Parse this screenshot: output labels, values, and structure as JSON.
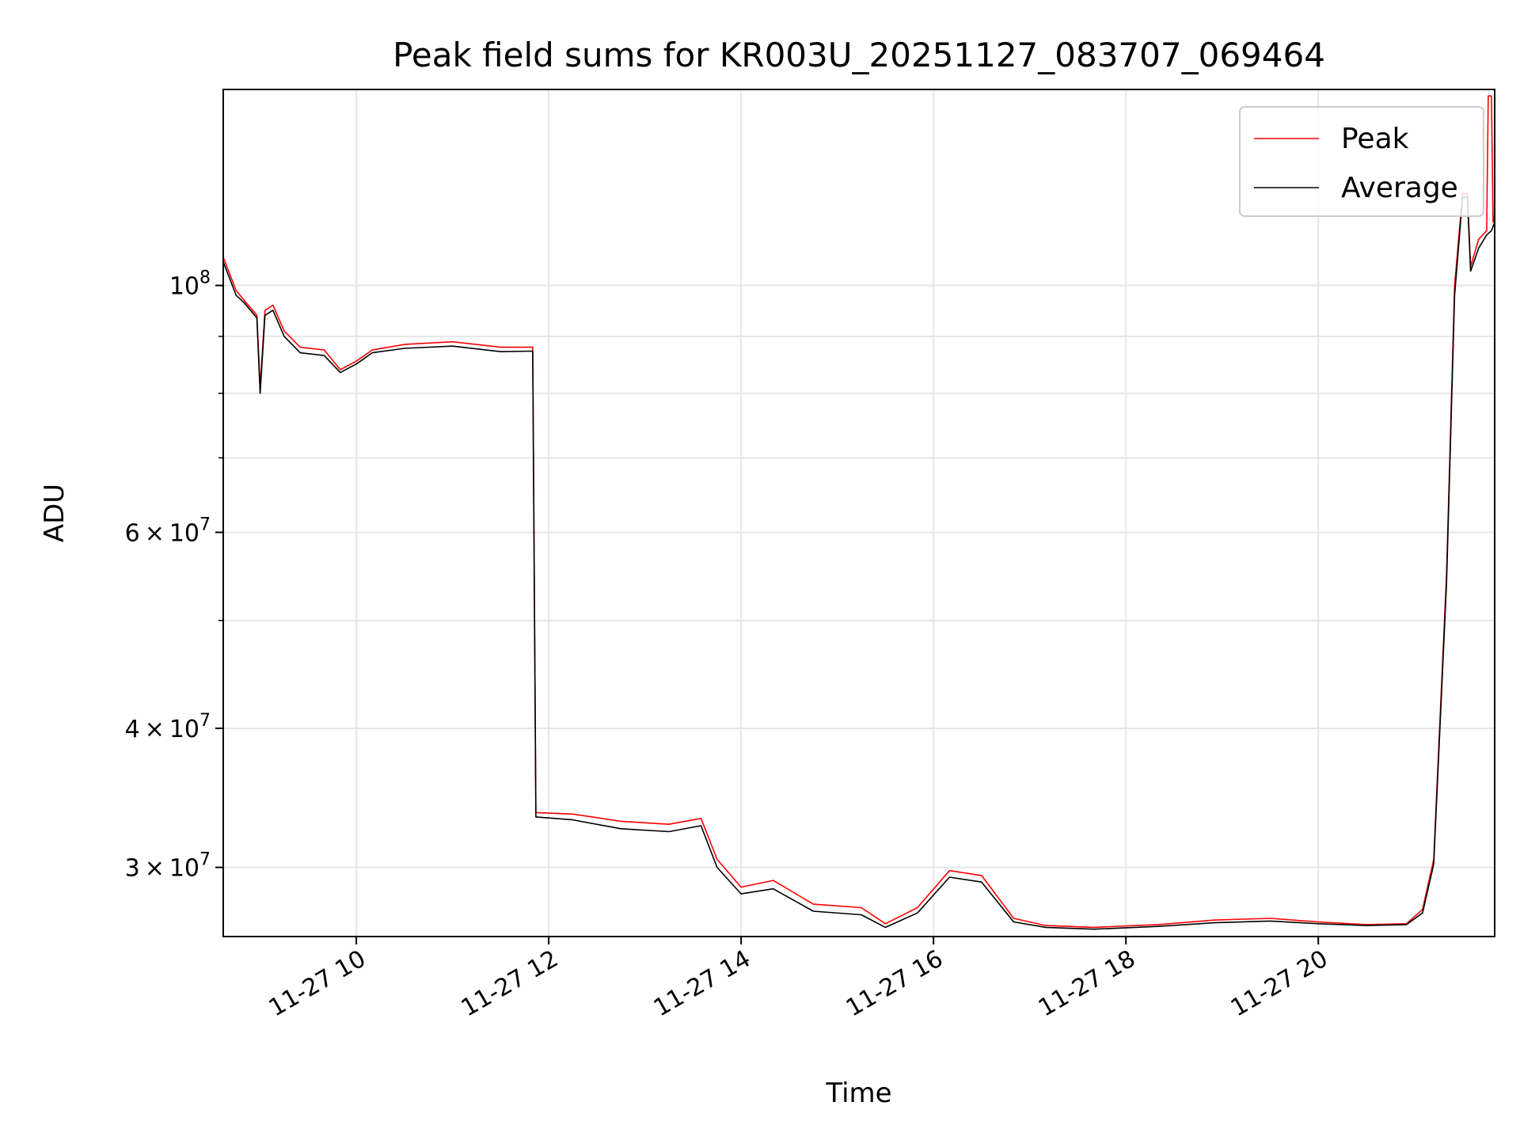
{
  "chart_data": {
    "type": "line",
    "title": "Peak field sums for KR003U_20251127_083707_069464",
    "xlabel": "Time",
    "ylabel": "ADU",
    "y_scale": "log",
    "grid": true,
    "legend_position": "top-right",
    "xlim": [
      "2025-11-27 08:37",
      "2025-11-27 21:50"
    ],
    "ylim": [
      26000000,
      150000000
    ],
    "x_ticks": [
      {
        "value": "2025-11-27 10:00",
        "label": "11-27 10"
      },
      {
        "value": "2025-11-27 12:00",
        "label": "11-27 12"
      },
      {
        "value": "2025-11-27 14:00",
        "label": "11-27 14"
      },
      {
        "value": "2025-11-27 16:00",
        "label": "11-27 16"
      },
      {
        "value": "2025-11-27 18:00",
        "label": "11-27 18"
      },
      {
        "value": "2025-11-27 20:00",
        "label": "11-27 20"
      }
    ],
    "y_major_ticks": [
      {
        "value": 30000000,
        "mantissa": "3",
        "exp": "7"
      },
      {
        "value": 40000000,
        "mantissa": "4",
        "exp": "7"
      },
      {
        "value": 60000000,
        "mantissa": "6",
        "exp": "7"
      },
      {
        "value": 100000000,
        "mantissa": "",
        "exp": "8"
      }
    ],
    "y_minor_ticks": [
      50000000,
      70000000,
      80000000,
      90000000
    ],
    "series": [
      {
        "name": "Peak",
        "color": "#ff0000",
        "points": [
          [
            "2025-11-27 08:37",
            106000000
          ],
          [
            "2025-11-27 08:45",
            99000000
          ],
          [
            "2025-11-27 08:50",
            97000000
          ],
          [
            "2025-11-27 08:58",
            94000000
          ],
          [
            "2025-11-27 09:00",
            81000000
          ],
          [
            "2025-11-27 09:03",
            95000000
          ],
          [
            "2025-11-27 09:08",
            96000000
          ],
          [
            "2025-11-27 09:15",
            91000000
          ],
          [
            "2025-11-27 09:25",
            88000000
          ],
          [
            "2025-11-27 09:40",
            87500000
          ],
          [
            "2025-11-27 09:50",
            84000000
          ],
          [
            "2025-11-27 10:00",
            85500000
          ],
          [
            "2025-11-27 10:10",
            87500000
          ],
          [
            "2025-11-27 10:30",
            88500000
          ],
          [
            "2025-11-27 11:00",
            89000000
          ],
          [
            "2025-11-27 11:30",
            88000000
          ],
          [
            "2025-11-27 11:50",
            88000000
          ],
          [
            "2025-11-27 11:52",
            33600000
          ],
          [
            "2025-11-27 12:15",
            33500000
          ],
          [
            "2025-11-27 12:45",
            33000000
          ],
          [
            "2025-11-27 13:15",
            32800000
          ],
          [
            "2025-11-27 13:35",
            33200000
          ],
          [
            "2025-11-27 13:45",
            30500000
          ],
          [
            "2025-11-27 14:00",
            28800000
          ],
          [
            "2025-11-27 14:20",
            29200000
          ],
          [
            "2025-11-27 14:45",
            27800000
          ],
          [
            "2025-11-27 15:15",
            27600000
          ],
          [
            "2025-11-27 15:30",
            26700000
          ],
          [
            "2025-11-27 15:50",
            27600000
          ],
          [
            "2025-11-27 16:10",
            29800000
          ],
          [
            "2025-11-27 16:30",
            29500000
          ],
          [
            "2025-11-27 16:50",
            27000000
          ],
          [
            "2025-11-27 17:10",
            26600000
          ],
          [
            "2025-11-27 17:40",
            26500000
          ],
          [
            "2025-11-27 18:20",
            26650000
          ],
          [
            "2025-11-27 18:55",
            26900000
          ],
          [
            "2025-11-27 19:30",
            27000000
          ],
          [
            "2025-11-27 20:00",
            26800000
          ],
          [
            "2025-11-27 20:30",
            26650000
          ],
          [
            "2025-11-27 20:55",
            26700000
          ],
          [
            "2025-11-27 21:05",
            27500000
          ],
          [
            "2025-11-27 21:12",
            30500000
          ],
          [
            "2025-11-27 21:20",
            55000000
          ],
          [
            "2025-11-27 21:25",
            100000000
          ],
          [
            "2025-11-27 21:30",
            121000000
          ],
          [
            "2025-11-27 21:33",
            121000000
          ],
          [
            "2025-11-27 21:35",
            104000000
          ],
          [
            "2025-11-27 21:40",
            110000000
          ],
          [
            "2025-11-27 21:45",
            112000000
          ],
          [
            "2025-11-27 21:46",
            148000000
          ],
          [
            "2025-11-27 21:48",
            148000000
          ],
          [
            "2025-11-27 21:49",
            114000000
          ],
          [
            "2025-11-27 21:50",
            116000000
          ]
        ]
      },
      {
        "name": "Average",
        "color": "#000000",
        "points": [
          [
            "2025-11-27 08:37",
            105000000
          ],
          [
            "2025-11-27 08:45",
            98000000
          ],
          [
            "2025-11-27 08:50",
            96500000
          ],
          [
            "2025-11-27 08:58",
            93500000
          ],
          [
            "2025-11-27 09:00",
            80000000
          ],
          [
            "2025-11-27 09:03",
            94000000
          ],
          [
            "2025-11-27 09:08",
            95000000
          ],
          [
            "2025-11-27 09:15",
            90000000
          ],
          [
            "2025-11-27 09:25",
            87000000
          ],
          [
            "2025-11-27 09:40",
            86500000
          ],
          [
            "2025-11-27 09:50",
            83500000
          ],
          [
            "2025-11-27 10:00",
            85000000
          ],
          [
            "2025-11-27 10:10",
            87000000
          ],
          [
            "2025-11-27 10:30",
            87800000
          ],
          [
            "2025-11-27 11:00",
            88200000
          ],
          [
            "2025-11-27 11:30",
            87200000
          ],
          [
            "2025-11-27 11:50",
            87300000
          ],
          [
            "2025-11-27 11:52",
            33300000
          ],
          [
            "2025-11-27 12:15",
            33100000
          ],
          [
            "2025-11-27 12:45",
            32500000
          ],
          [
            "2025-11-27 13:15",
            32300000
          ],
          [
            "2025-11-27 13:35",
            32700000
          ],
          [
            "2025-11-27 13:45",
            30000000
          ],
          [
            "2025-11-27 14:00",
            28400000
          ],
          [
            "2025-11-27 14:20",
            28700000
          ],
          [
            "2025-11-27 14:45",
            27400000
          ],
          [
            "2025-11-27 15:15",
            27200000
          ],
          [
            "2025-11-27 15:30",
            26500000
          ],
          [
            "2025-11-27 15:50",
            27300000
          ],
          [
            "2025-11-27 16:10",
            29400000
          ],
          [
            "2025-11-27 16:30",
            29100000
          ],
          [
            "2025-11-27 16:50",
            26800000
          ],
          [
            "2025-11-27 17:10",
            26500000
          ],
          [
            "2025-11-27 17:40",
            26400000
          ],
          [
            "2025-11-27 18:20",
            26550000
          ],
          [
            "2025-11-27 18:55",
            26750000
          ],
          [
            "2025-11-27 19:30",
            26850000
          ],
          [
            "2025-11-27 20:00",
            26700000
          ],
          [
            "2025-11-27 20:30",
            26600000
          ],
          [
            "2025-11-27 20:55",
            26650000
          ],
          [
            "2025-11-27 21:05",
            27300000
          ],
          [
            "2025-11-27 21:12",
            30200000
          ],
          [
            "2025-11-27 21:20",
            54000000
          ],
          [
            "2025-11-27 21:25",
            98000000
          ],
          [
            "2025-11-27 21:30",
            120000000
          ],
          [
            "2025-11-27 21:33",
            120000000
          ],
          [
            "2025-11-27 21:35",
            103000000
          ],
          [
            "2025-11-27 21:40",
            108000000
          ],
          [
            "2025-11-27 21:45",
            111000000
          ],
          [
            "2025-11-27 21:48",
            112000000
          ],
          [
            "2025-11-27 21:50",
            114000000
          ]
        ]
      }
    ]
  }
}
